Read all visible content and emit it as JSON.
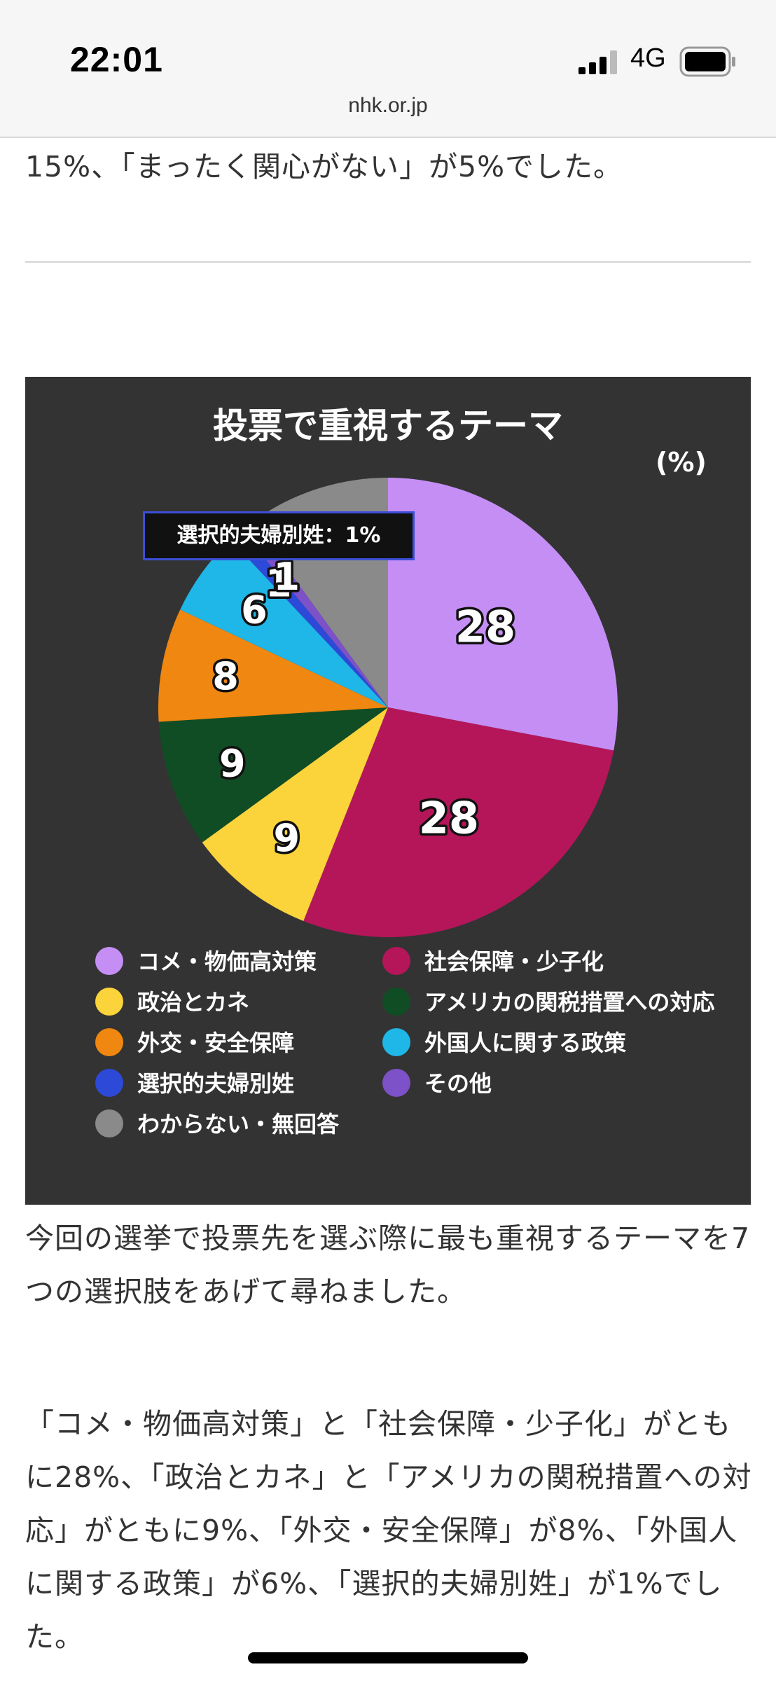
{
  "status_bar": {
    "time": "22:01",
    "network": "4G",
    "signal_icon": "signal-bars-icon",
    "battery_icon": "battery-icon",
    "url": "nhk.or.jp"
  },
  "article": {
    "intro_line": "15%、「まったく関心がない」が5%でした。",
    "paragraph_1": "今回の選挙で投票先を選ぶ際に最も重視するテーマを7つの選択肢をあげて尋ねました。",
    "paragraph_2": "「コメ・物価高対策」と「社会保障・少子化」がともに28%、「政治とカネ」と「アメリカの関税措置への対応」がともに9%、「外交・安全保障」が8%、「外国人に関する政策」が6%、「選択的夫婦別姓」が1%でした。"
  },
  "chart": {
    "title": "投票で重視するテーマ",
    "unit": "(%)",
    "tooltip": "選択的夫婦別姓：1%"
  },
  "chart_data": {
    "type": "pie",
    "title": "投票で重視するテーマ",
    "unit": "(%)",
    "start": "12 o'clock, clockwise",
    "legend_position": "bottom",
    "slices": [
      {
        "label": "コメ・物価高対策",
        "value": 28,
        "color": "#c58ef5",
        "value_label": "28"
      },
      {
        "label": "社会保障・少子化",
        "value": 28,
        "color": "#b5165a",
        "value_label": "28"
      },
      {
        "label": "政治とカネ",
        "value": 9,
        "color": "#fbd33a",
        "value_label": "9"
      },
      {
        "label": "アメリカの関税措置への対応",
        "value": 9,
        "color": "#114d24",
        "value_label": "9"
      },
      {
        "label": "外交・安全保障",
        "value": 8,
        "color": "#ef8710",
        "value_label": "8"
      },
      {
        "label": "外国人に関する政策",
        "value": 6,
        "color": "#1fb6e8",
        "value_label": "6"
      },
      {
        "label": "選択的夫婦別姓",
        "value": 1,
        "color": "#2d49d8",
        "value_label": "1"
      },
      {
        "label": "その他",
        "value": 1,
        "color": "#7d51c7",
        "value_label": "1"
      },
      {
        "label": "わからない・無回答",
        "value": 10,
        "color": "#8a8a8a",
        "value_label": ""
      }
    ]
  }
}
